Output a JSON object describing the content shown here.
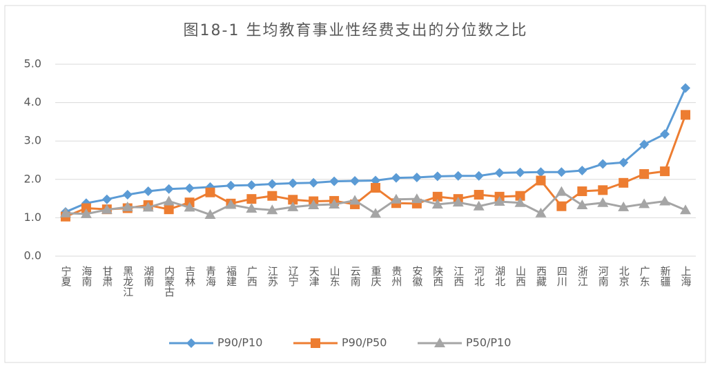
{
  "chart_data": {
    "type": "line",
    "title": "图18-1 生均教育事业性经费支出的分位数之比",
    "categories": [
      "宁夏",
      "海南",
      "甘肃",
      "黑龙江",
      "湖南",
      "内蒙古",
      "吉林",
      "青海",
      "福建",
      "广西",
      "江苏",
      "辽宁",
      "天津",
      "山东",
      "云南",
      "重庆",
      "贵州",
      "安徽",
      "陕西",
      "江西",
      "河北",
      "湖北",
      "山西",
      "西藏",
      "四川",
      "浙江",
      "河南",
      "北京",
      "广东",
      "新疆",
      "上海"
    ],
    "series": [
      {
        "name": "P90/P10",
        "color": "#5b9bd5",
        "marker": "diamond",
        "values": [
          1.15,
          1.38,
          1.48,
          1.6,
          1.69,
          1.75,
          1.77,
          1.8,
          1.84,
          1.85,
          1.88,
          1.9,
          1.91,
          1.95,
          1.96,
          1.97,
          2.04,
          2.05,
          2.08,
          2.09,
          2.09,
          2.17,
          2.18,
          2.19,
          2.19,
          2.23,
          2.4,
          2.44,
          2.91,
          3.18,
          4.38
        ]
      },
      {
        "name": "P90/P50",
        "color": "#ed7d31",
        "marker": "square",
        "values": [
          1.03,
          1.25,
          1.22,
          1.25,
          1.33,
          1.22,
          1.4,
          1.66,
          1.37,
          1.49,
          1.57,
          1.47,
          1.43,
          1.44,
          1.35,
          1.78,
          1.38,
          1.37,
          1.55,
          1.49,
          1.6,
          1.55,
          1.57,
          1.97,
          1.3,
          1.69,
          1.72,
          1.91,
          2.14,
          2.21,
          3.68
        ]
      },
      {
        "name": "P50/P10",
        "color": "#a5a5a5",
        "marker": "triangle",
        "values": [
          1.12,
          1.1,
          1.21,
          1.28,
          1.27,
          1.43,
          1.27,
          1.08,
          1.34,
          1.24,
          1.2,
          1.28,
          1.33,
          1.35,
          1.45,
          1.11,
          1.48,
          1.49,
          1.35,
          1.4,
          1.3,
          1.42,
          1.39,
          1.12,
          1.68,
          1.33,
          1.39,
          1.28,
          1.36,
          1.43,
          1.2
        ]
      }
    ],
    "ylim": [
      0,
      5
    ],
    "yticks": [
      {
        "value": 0,
        "label": "0.0"
      },
      {
        "value": 1,
        "label": "1.0"
      },
      {
        "value": 2,
        "label": "2.0"
      },
      {
        "value": 3,
        "label": "3.0"
      },
      {
        "value": 4,
        "label": "4.0"
      },
      {
        "value": 5,
        "label": "5.0"
      }
    ],
    "grid": true,
    "legend": "bottom"
  }
}
